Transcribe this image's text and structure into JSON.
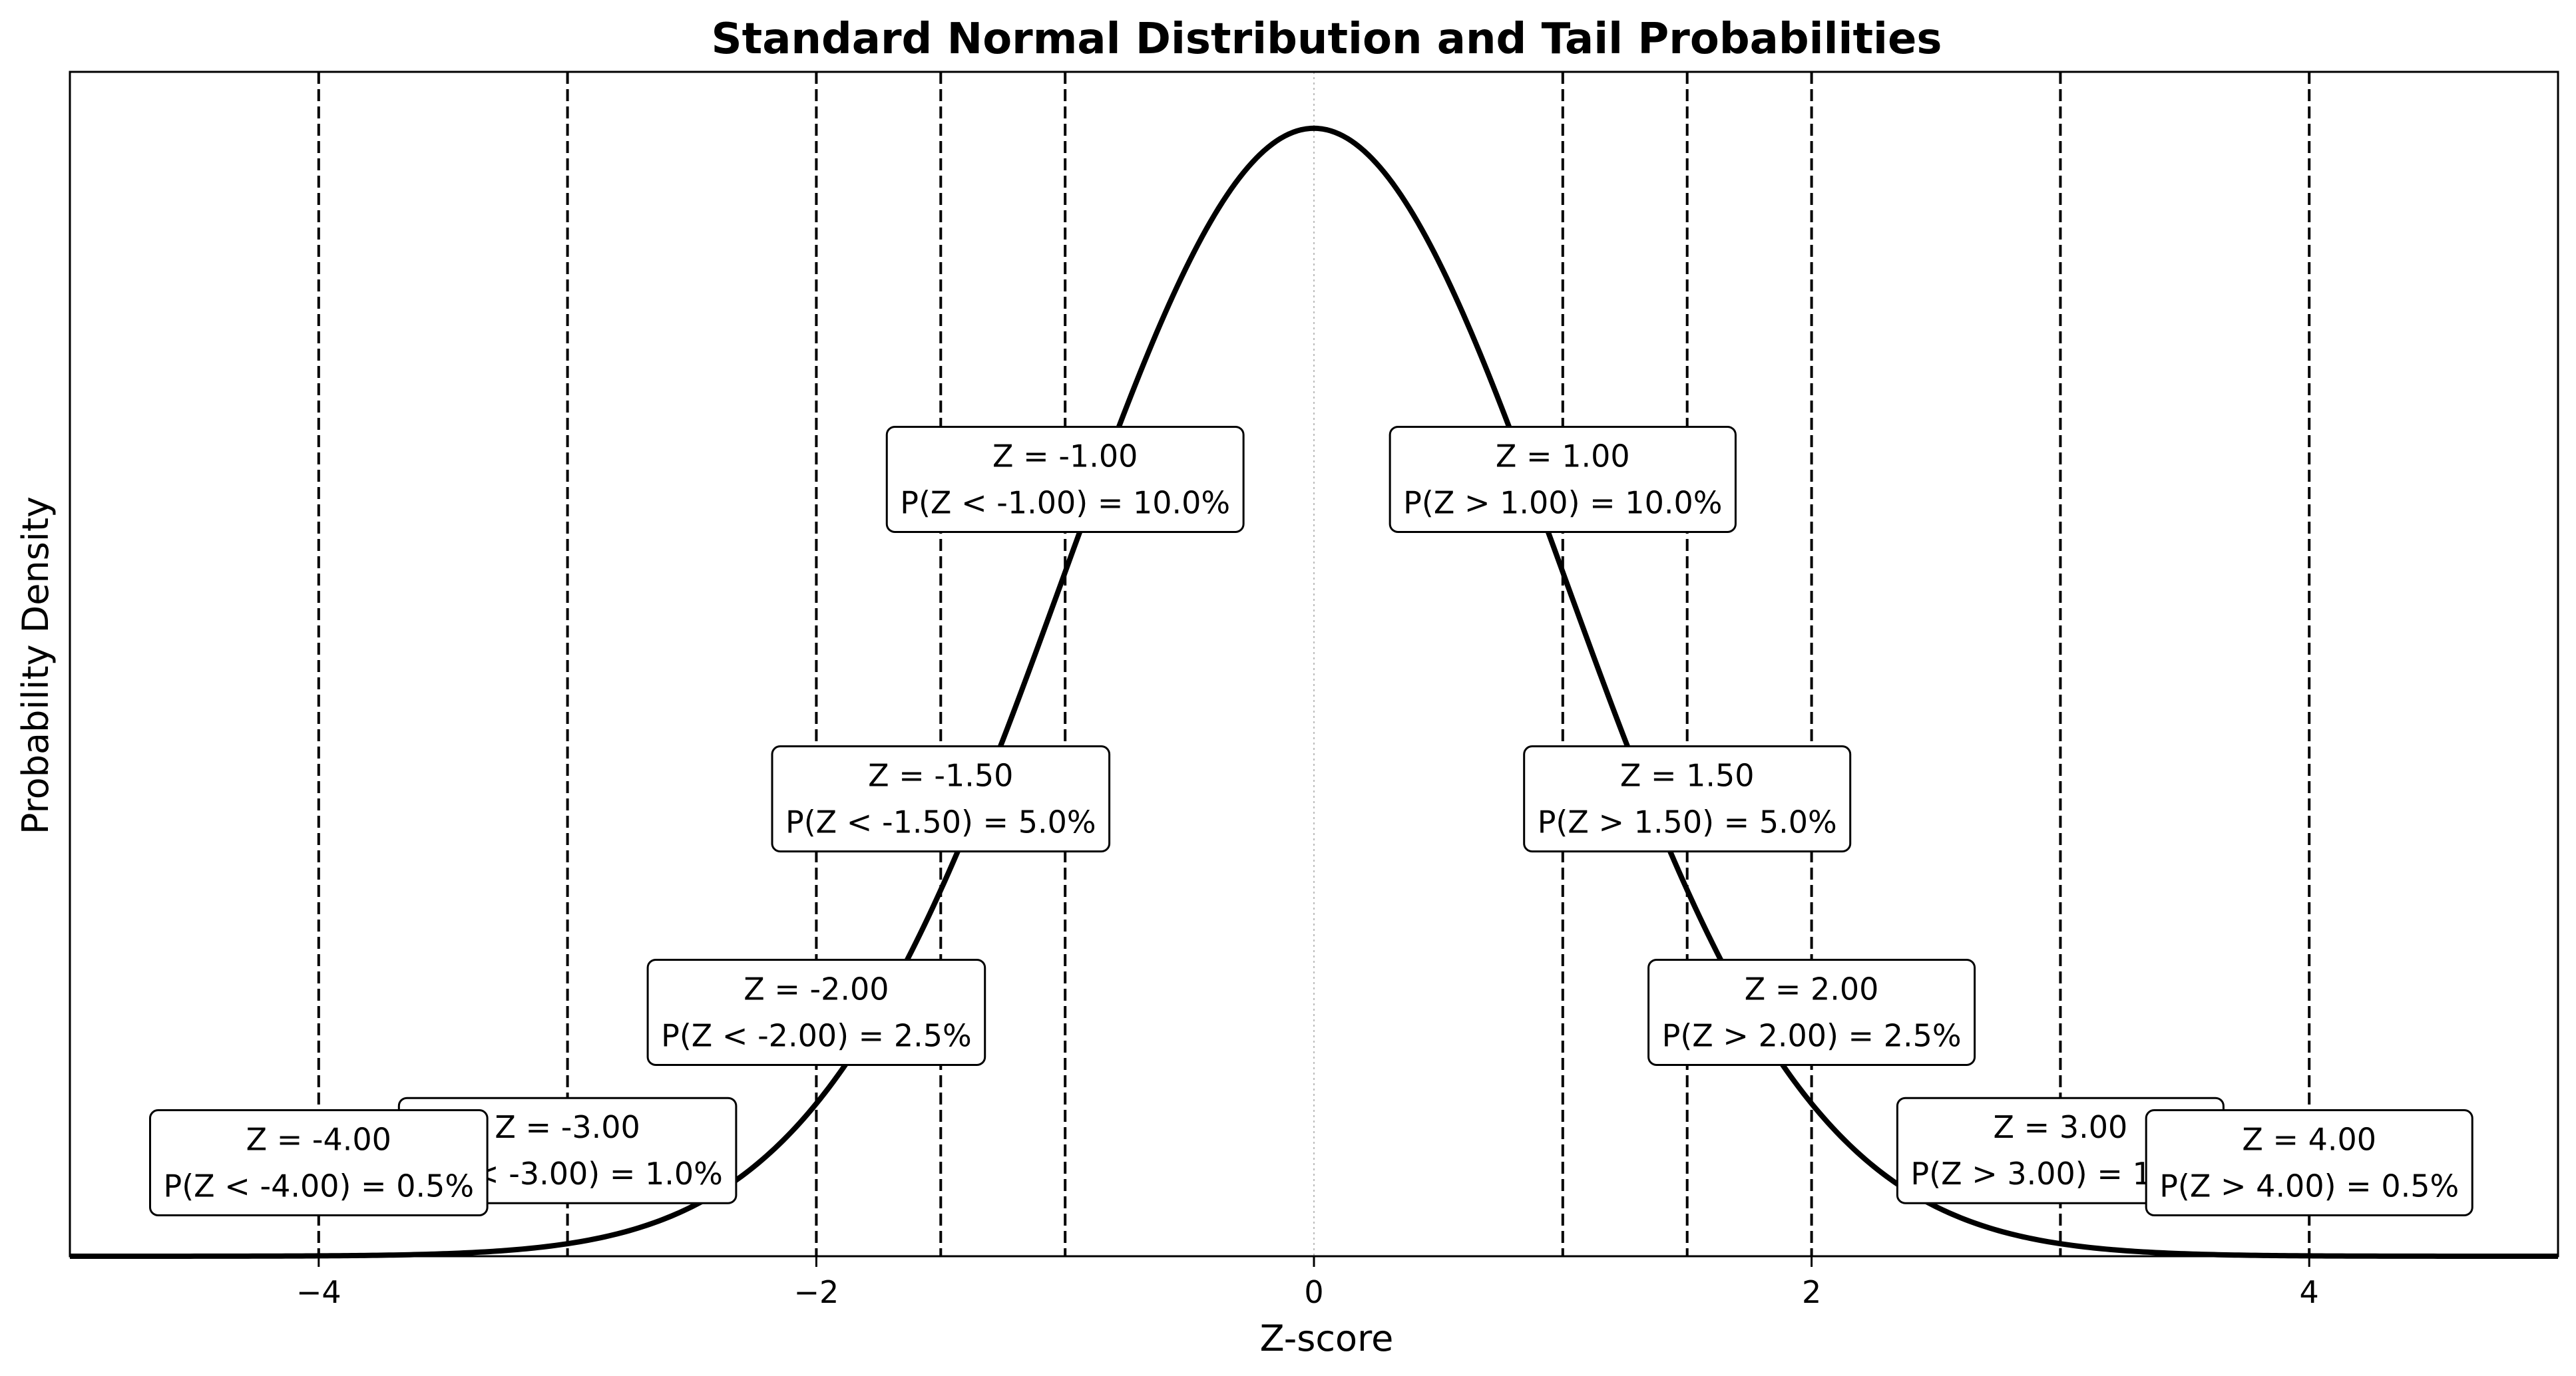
{
  "chart_data": {
    "type": "line",
    "title": "Standard Normal Distribution and Tail Probabilities",
    "xlabel": "Z-score",
    "ylabel": "Probability Density",
    "xlim": [
      -5,
      5
    ],
    "ylim": [
      0,
      0.4189
    ],
    "xticks": [
      -4,
      -2,
      0,
      2,
      4
    ],
    "xtick_labels": [
      "−4",
      "−2",
      "0",
      "2",
      "4"
    ],
    "yticks_visible": false,
    "grid": false,
    "series": [
      {
        "function": "standard_normal_pdf",
        "x_range": [
          -5,
          5
        ],
        "color": "#000000"
      }
    ],
    "reference_lines": {
      "center": {
        "x": 0,
        "style": "dotted",
        "color": "#bbbbbb"
      },
      "z_lines": [
        -4,
        -3,
        -2,
        -1.5,
        -1,
        1,
        1.5,
        2,
        3,
        4
      ],
      "style": "dashed",
      "color": "#000000"
    },
    "annotations": [
      {
        "z": -1.0,
        "y": 0.275,
        "line1": "Z = -1.00",
        "line2": "P(Z < -1.00) = 10.0%"
      },
      {
        "z": 1.0,
        "y": 0.275,
        "line1": "Z = 1.00",
        "line2": "P(Z > 1.00) = 10.0%"
      },
      {
        "z": -1.5,
        "y": 0.162,
        "line1": "Z = -1.50",
        "line2": "P(Z < -1.50) = 5.0%"
      },
      {
        "z": 1.5,
        "y": 0.162,
        "line1": "Z = 1.50",
        "line2": "P(Z > 1.50) = 5.0%"
      },
      {
        "z": -2.0,
        "y": 0.0865,
        "line1": "Z = -2.00",
        "line2": "P(Z < -2.00) = 2.5%"
      },
      {
        "z": 2.0,
        "y": 0.0865,
        "line1": "Z = 2.00",
        "line2": "P(Z > 2.00) = 2.5%"
      },
      {
        "z": -3.0,
        "y": 0.0376,
        "line1": "Z = -3.00",
        "line2": "P(Z < -3.00) = 1.0%"
      },
      {
        "z": 3.0,
        "y": 0.0376,
        "line1": "Z = 3.00",
        "line2": "P(Z > 3.00) = 1.0%"
      },
      {
        "z": -4.0,
        "y": 0.0333,
        "line1": "Z = -4.00",
        "line2": "P(Z < -4.00) = 0.5%"
      },
      {
        "z": 4.0,
        "y": 0.0333,
        "line1": "Z = 4.00",
        "line2": "P(Z > 4.00) = 0.5%"
      }
    ]
  }
}
